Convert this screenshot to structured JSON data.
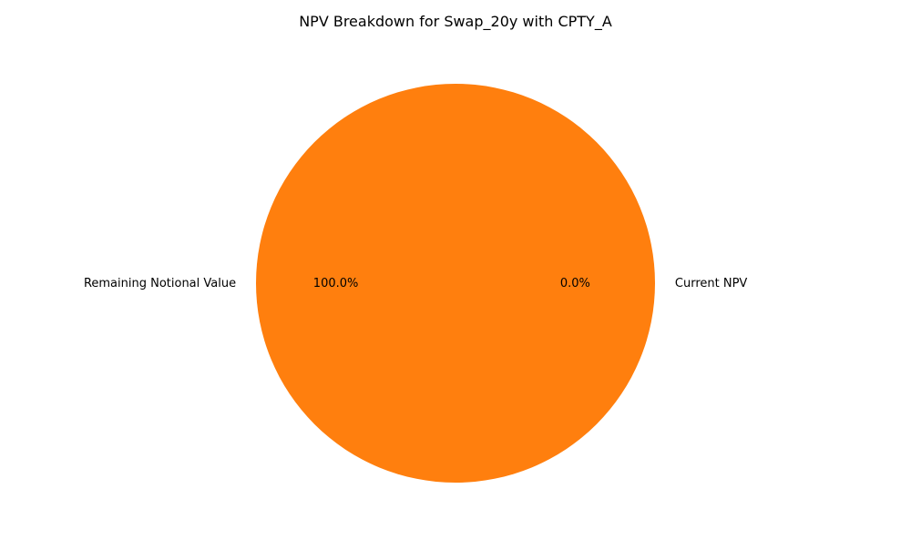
{
  "chart_data": {
    "type": "pie",
    "title": "NPV Breakdown for Swap_20y with CPTY_A",
    "categories": [
      "Current NPV",
      "Remaining Notional Value"
    ],
    "values": [
      0.0,
      100.0
    ],
    "percent_labels": [
      "0.0%",
      "100.0%"
    ],
    "colors": [
      "#1f77b4",
      "#ff7f0e"
    ],
    "start_angle": 0,
    "legend": "none"
  }
}
